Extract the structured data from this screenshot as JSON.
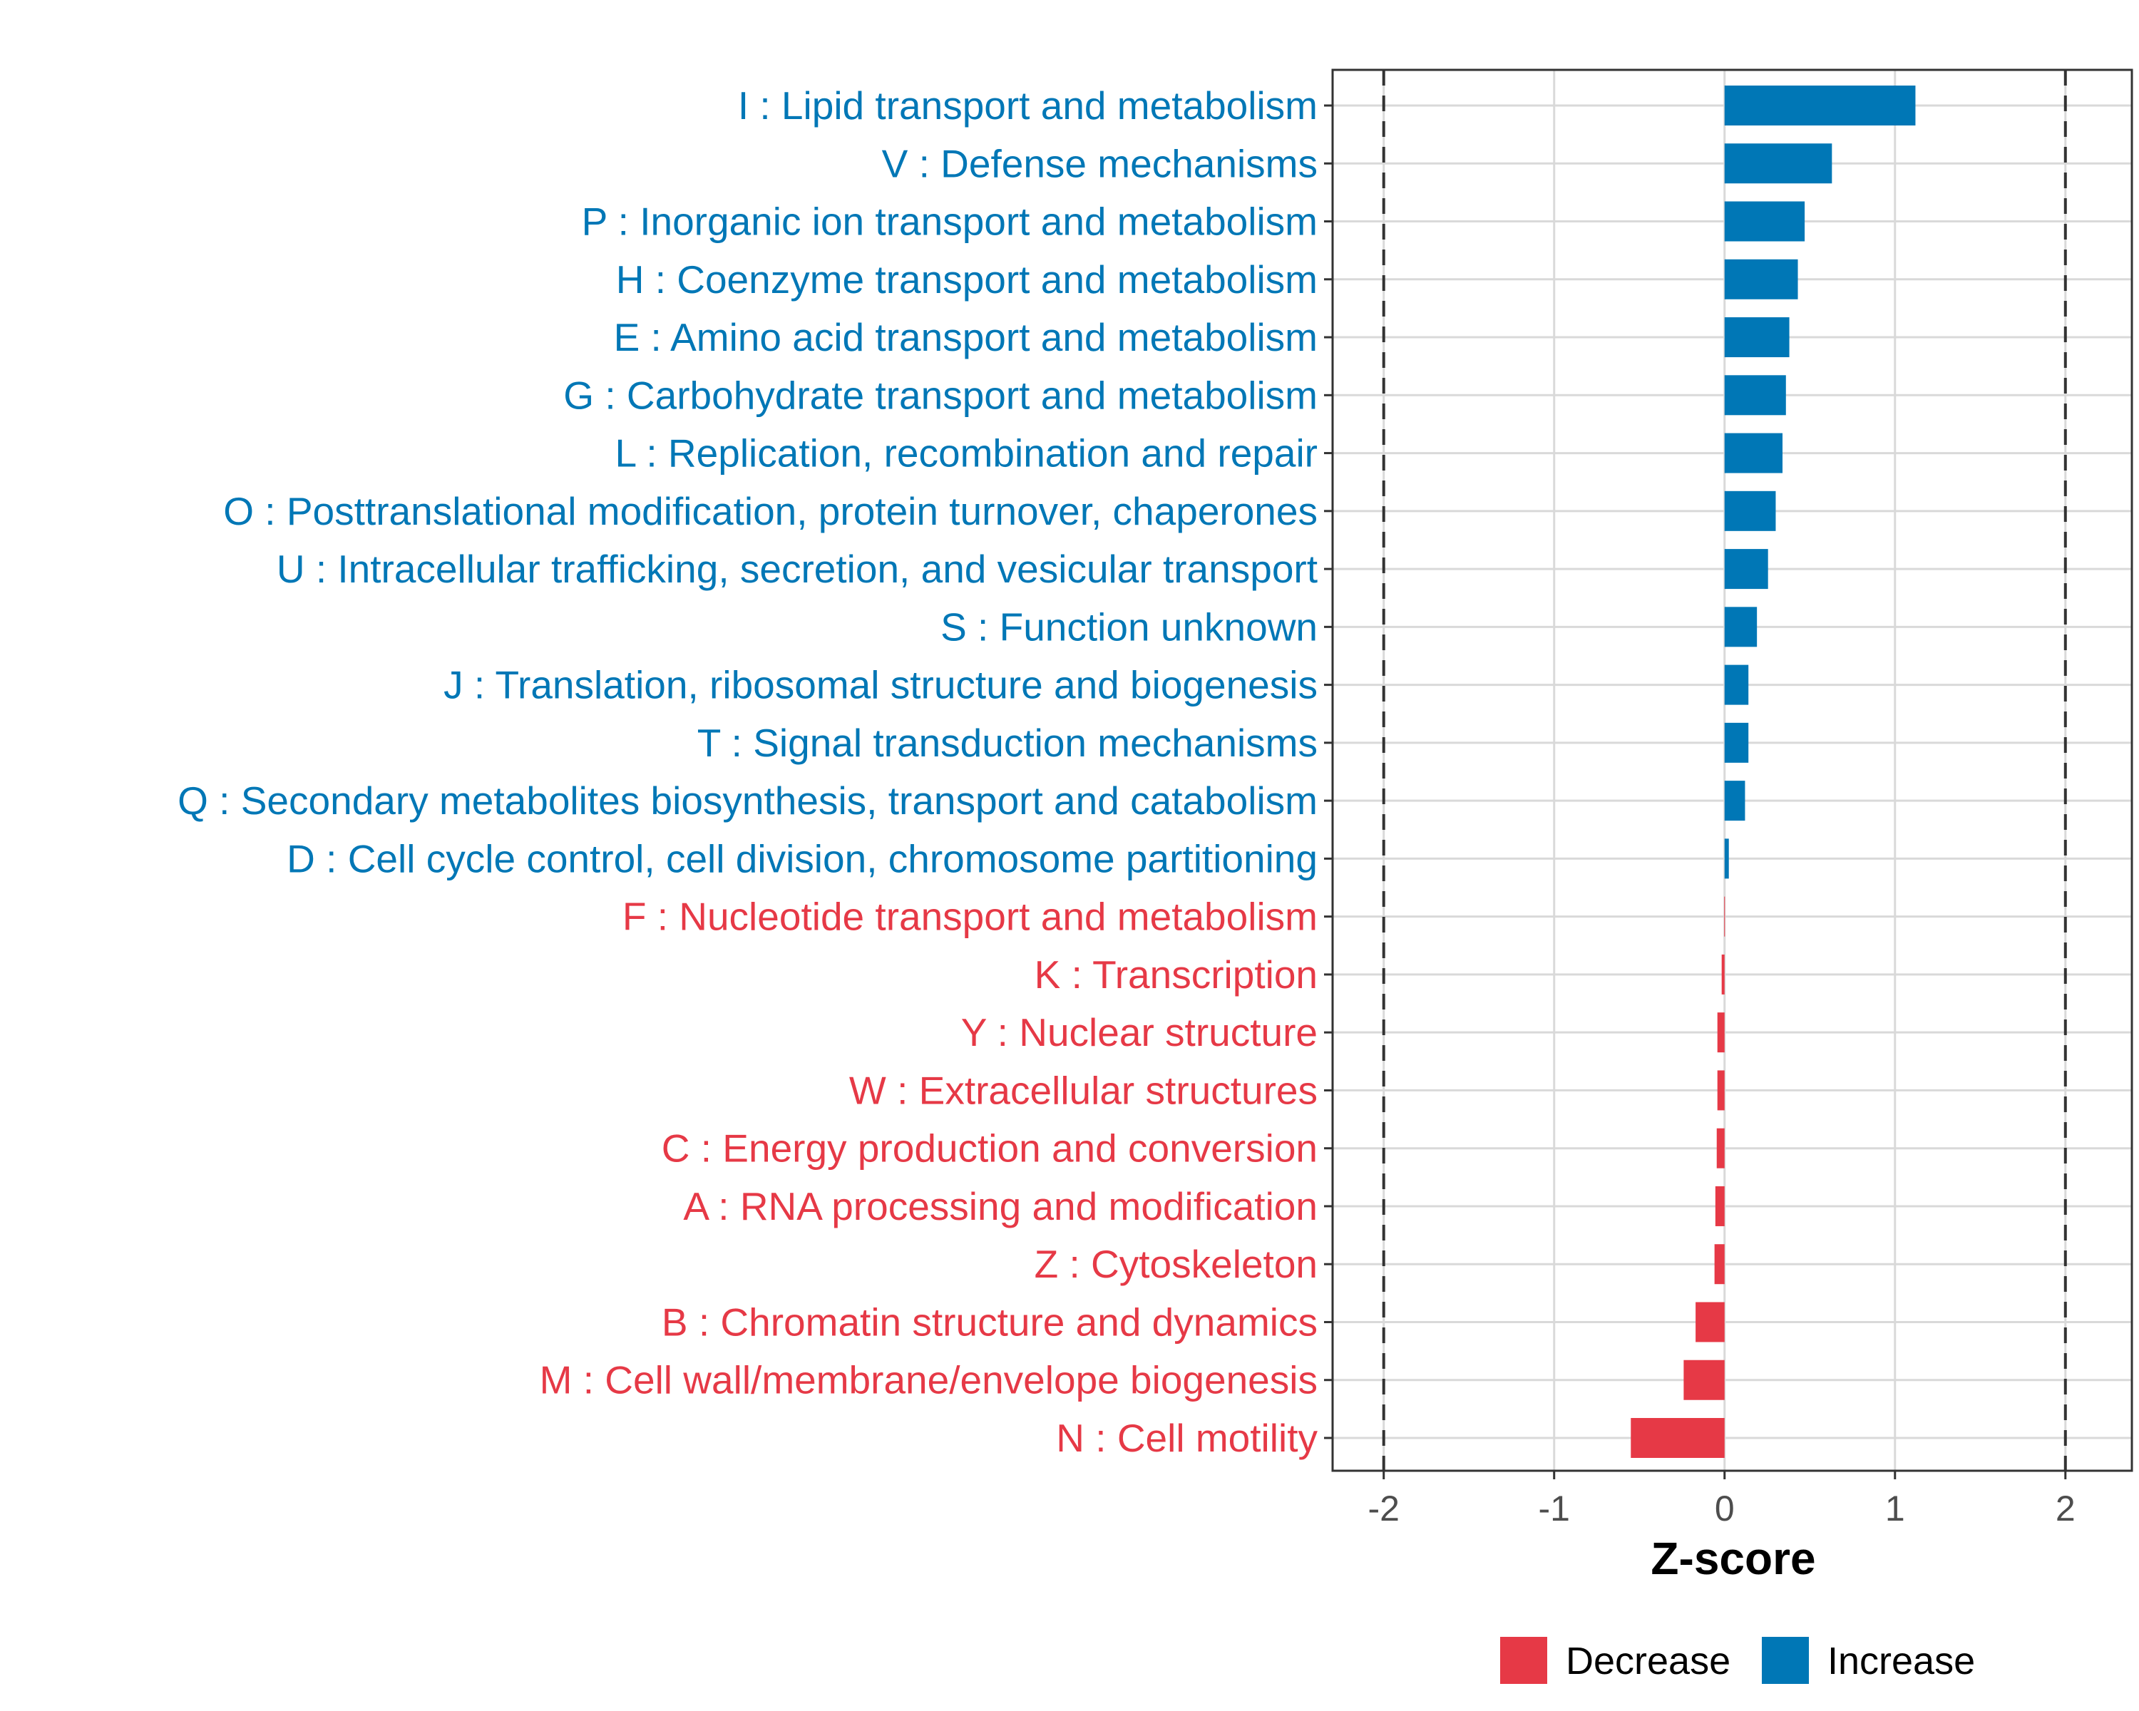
{
  "chart_data": {
    "type": "bar",
    "orientation": "horizontal",
    "xlabel": "Z-score",
    "ylabel": "",
    "xlim": [
      -2.3,
      2.39
    ],
    "x_ticks": [
      -2,
      -1,
      0,
      1,
      2
    ],
    "x_tick_labels": [
      "-2",
      "-1",
      "0",
      "1",
      "2"
    ],
    "reference_lines": [
      -2,
      2
    ],
    "grid": true,
    "legend": {
      "placement": "bottom",
      "entries": [
        {
          "label": "Decrease",
          "color": "#e63946"
        },
        {
          "label": "Increase",
          "color": "#0077b6"
        }
      ]
    },
    "categories": [
      "I : Lipid transport and metabolism",
      "V : Defense mechanisms",
      "P : Inorganic ion transport and metabolism",
      "H : Coenzyme transport and metabolism",
      "E : Amino acid transport and metabolism",
      "G : Carbohydrate transport and metabolism",
      "L : Replication, recombination and repair",
      "O : Posttranslational modification, protein turnover, chaperones",
      "U : Intracellular trafficking, secretion, and vesicular transport",
      "S : Function unknown",
      "J : Translation, ribosomal structure and biogenesis",
      "T : Signal transduction mechanisms",
      "Q : Secondary metabolites biosynthesis, transport and catabolism",
      "D : Cell cycle control, cell division, chromosome partitioning",
      "F : Nucleotide transport and metabolism",
      "K : Transcription",
      "Y : Nuclear structure",
      "W : Extracellular structures",
      "C : Energy production and conversion",
      "A : RNA processing and modification",
      "Z : Cytoskeleton",
      "B : Chromatin structure and dynamics",
      "M : Cell wall/membrane/envelope biogenesis",
      "N : Cell motility"
    ],
    "values": [
      1.12,
      0.63,
      0.47,
      0.43,
      0.38,
      0.36,
      0.34,
      0.3,
      0.255,
      0.19,
      0.14,
      0.14,
      0.12,
      0.025,
      -0.002,
      -0.017,
      -0.042,
      -0.042,
      -0.046,
      -0.054,
      -0.059,
      -0.17,
      -0.24,
      -0.55
    ],
    "colors": {
      "increase": "#0077b6",
      "decrease": "#e63946"
    }
  }
}
